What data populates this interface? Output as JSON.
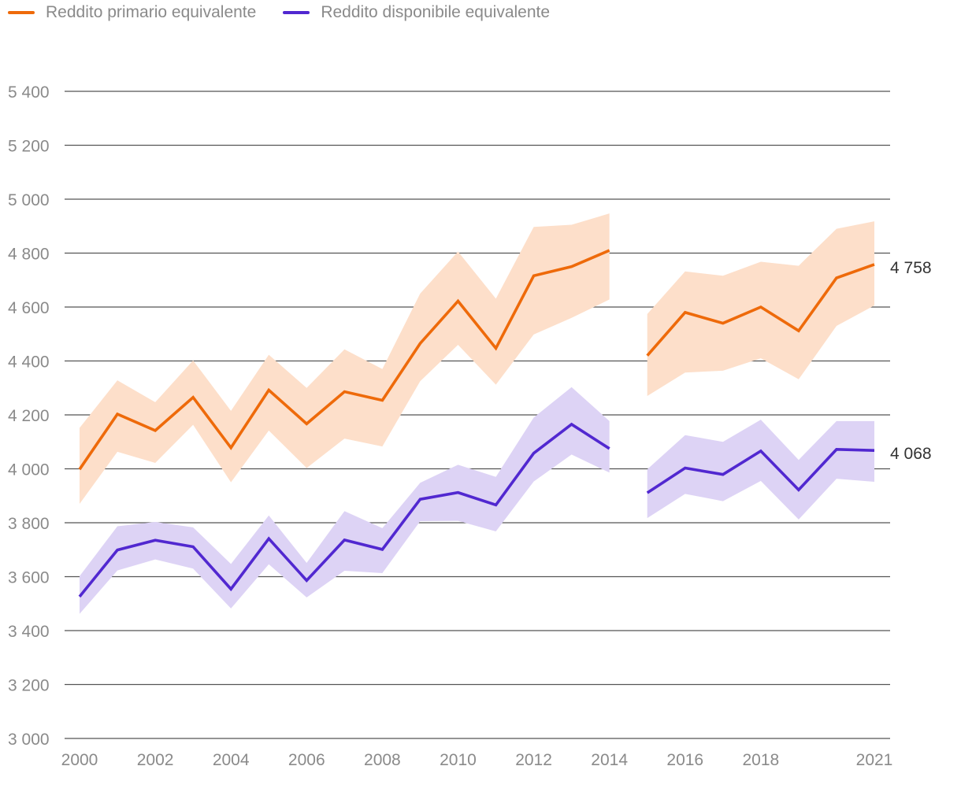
{
  "legend": {
    "primary_label": "Reddito primario equivalente",
    "disposable_label": "Reddito disponibile equivalente"
  },
  "colors": {
    "primary_line": "#EE6A0A",
    "primary_band": "#FDDFCA",
    "disposable_line": "#5128D0",
    "disposable_band": "#DDD3F5",
    "grid": "#555555",
    "axis_text": "#8a8a8a"
  },
  "chart_data": {
    "type": "line",
    "title": "",
    "xlabel": "",
    "ylabel": "",
    "ylim": [
      3000,
      5400
    ],
    "yticks": [
      3000,
      3200,
      3400,
      3600,
      3800,
      4000,
      4200,
      4400,
      4600,
      4800,
      5000,
      5200,
      5400
    ],
    "ytick_labels": [
      "3 000",
      "3 200",
      "3 400",
      "3 600",
      "3 800",
      "4 000",
      "4 200",
      "4 400",
      "4 600",
      "4 800",
      "5 000",
      "5 200",
      "5 400"
    ],
    "xlim": [
      2000,
      2021
    ],
    "xticks": [
      2000,
      2002,
      2004,
      2006,
      2008,
      2010,
      2012,
      2014,
      2016,
      2018,
      2021
    ],
    "xtick_labels": [
      "2000",
      "2002",
      "2004",
      "2006",
      "2008",
      "2010",
      "2012",
      "2014",
      "2016",
      "2018",
      "2021"
    ],
    "grid": true,
    "legend_position": "top-left",
    "segments": [
      {
        "x": [
          2000,
          2001,
          2002,
          2003,
          2004,
          2005,
          2006,
          2007,
          2008,
          2009,
          2010,
          2011,
          2012,
          2013,
          2014
        ]
      },
      {
        "x": [
          2015,
          2016,
          2017,
          2018,
          2019,
          2020,
          2021
        ]
      }
    ],
    "series": [
      {
        "name": "Reddito primario equivalente",
        "values": [
          [
            3998,
            4203,
            4142,
            4265,
            4078,
            4292,
            4167,
            4286,
            4254,
            4465,
            4622,
            4447,
            4716,
            4750,
            4810
          ],
          [
            4420,
            4580,
            4540,
            4600,
            4512,
            4708,
            4758
          ]
        ],
        "lower": [
          [
            3870,
            4063,
            4022,
            4163,
            3950,
            4142,
            4003,
            4112,
            4083,
            4325,
            4460,
            4312,
            4498,
            4560,
            4628
          ],
          [
            4270,
            4357,
            4364,
            4410,
            4332,
            4530,
            4606
          ]
        ],
        "upper": [
          [
            4152,
            4328,
            4247,
            4402,
            4215,
            4423,
            4300,
            4443,
            4370,
            4650,
            4806,
            4631,
            4897,
            4905,
            4947
          ],
          [
            4574,
            4732,
            4716,
            4768,
            4753,
            4890,
            4918
          ]
        ],
        "end_label": "4 758"
      },
      {
        "name": "Reddito disponibile equivalente",
        "values": [
          [
            3526,
            3699,
            3735,
            3711,
            3554,
            3741,
            3586,
            3736,
            3701,
            3887,
            3912,
            3866,
            4058,
            4165,
            4075
          ],
          [
            3911,
            4003,
            3979,
            4066,
            3922,
            4072,
            4068
          ]
        ],
        "lower": [
          [
            3462,
            3623,
            3664,
            3630,
            3482,
            3646,
            3523,
            3622,
            3613,
            3806,
            3807,
            3768,
            3953,
            4053,
            3986
          ],
          [
            3817,
            3907,
            3880,
            3955,
            3812,
            3963,
            3952
          ]
        ],
        "upper": [
          [
            3602,
            3787,
            3803,
            3783,
            3647,
            3827,
            3651,
            3843,
            3780,
            3948,
            4015,
            3970,
            4190,
            4303,
            4177
          ],
          [
            3998,
            4125,
            4100,
            4182,
            4033,
            4177,
            4177
          ]
        ],
        "end_label": "4 068"
      }
    ]
  }
}
